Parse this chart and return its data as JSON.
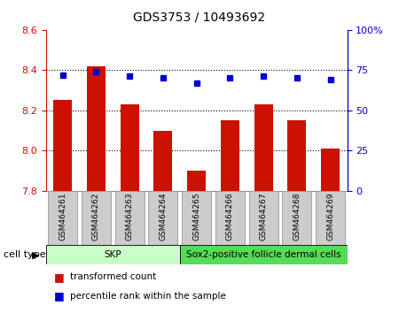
{
  "title": "GDS3753 / 10493692",
  "samples": [
    "GSM464261",
    "GSM464262",
    "GSM464263",
    "GSM464264",
    "GSM464265",
    "GSM464266",
    "GSM464267",
    "GSM464268",
    "GSM464269"
  ],
  "red_values": [
    8.25,
    8.42,
    8.23,
    8.1,
    7.9,
    8.15,
    8.23,
    8.15,
    8.01
  ],
  "blue_values": [
    72,
    74,
    71,
    70,
    67,
    70,
    71,
    70,
    69
  ],
  "ylim_left": [
    7.8,
    8.6
  ],
  "ylim_right": [
    0,
    100
  ],
  "yticks_left": [
    7.8,
    8.0,
    8.2,
    8.4,
    8.6
  ],
  "yticks_right": [
    0,
    25,
    50,
    75,
    100
  ],
  "ytick_labels_right": [
    "0",
    "25",
    "50",
    "75",
    "100%"
  ],
  "cell_types": [
    {
      "label": "SKP",
      "start": 0,
      "end": 4,
      "color": "#c8ffc8"
    },
    {
      "label": "Sox2-positive follicle dermal cells",
      "start": 4,
      "end": 9,
      "color": "#55dd55"
    }
  ],
  "bar_color": "#cc1100",
  "marker_color": "#0000cc",
  "bar_bottom": 7.8,
  "grid_lines": [
    8.0,
    8.2,
    8.4
  ],
  "bg_color": "#ffffff",
  "gsm_box_color": "#cccccc",
  "gsm_box_edge": "#999999",
  "legend_items": [
    "transformed count",
    "percentile rank within the sample"
  ],
  "xlabel_cell_type": "cell type"
}
